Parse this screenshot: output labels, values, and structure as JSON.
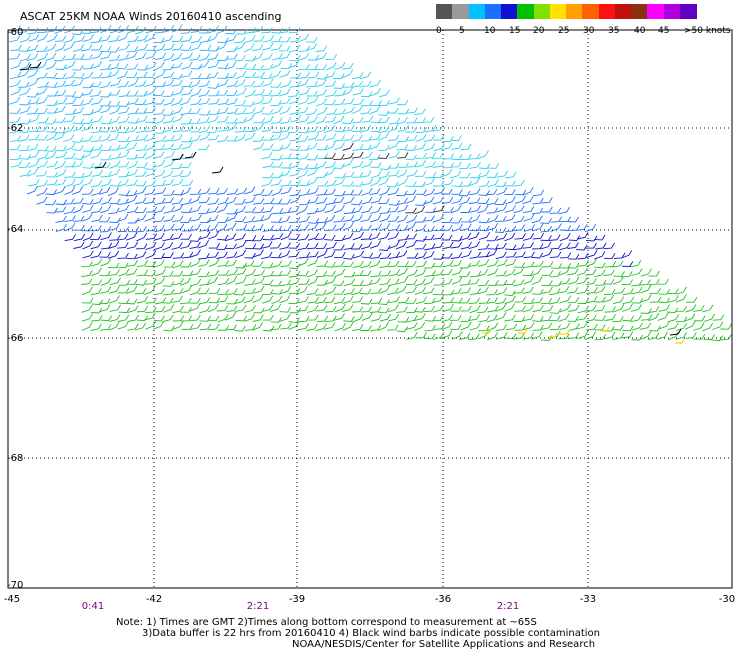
{
  "title": "ASCAT 25KM NOAA Winds 20160410 ascending",
  "legend": {
    "labels": [
      "0",
      "5",
      "10",
      "15",
      "20",
      "25",
      "30",
      "35",
      "40",
      "45",
      ">50 knots"
    ],
    "colors": [
      "#555555",
      "#9a9a9a",
      "#00c0ff",
      "#1c70ff",
      "#1010d0",
      "#00c000",
      "#80e000",
      "#ffe000",
      "#ffa000",
      "#ff6000",
      "#ff1010",
      "#c01010",
      "#8a3010",
      "#ff00ff",
      "#b000e0",
      "#6000c0"
    ]
  },
  "latitude_labels": [
    "-60",
    "-62",
    "-64",
    "-66",
    "-68",
    "-70"
  ],
  "longitude_labels": [
    "-45",
    "-42",
    "-39",
    "-36",
    "-33",
    "-30"
  ],
  "time_labels": [
    "0:41",
    "2:21",
    "2:21"
  ],
  "notes": [
    "Note: 1) Times are GMT 2)Times along bottom correspond to measurement at ~65S",
    "3)Data buffer is 22 hrs from 20160410 4) Black wind barbs indicate possible contamination",
    "NOAA/NESDIS/Center for Satellite Applications and Research"
  ]
}
